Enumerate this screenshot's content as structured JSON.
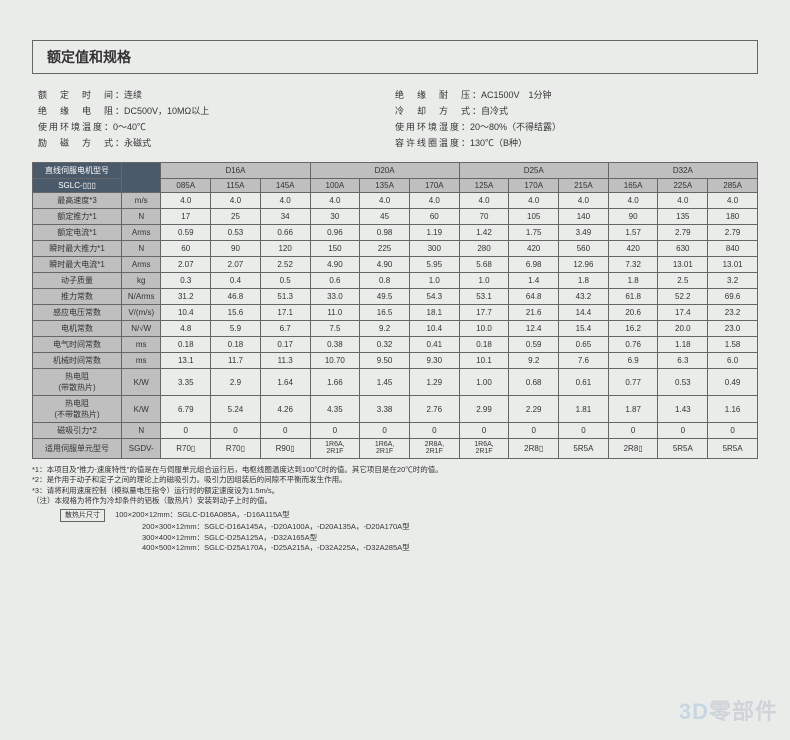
{
  "title": "额定值和规格",
  "spec_left": [
    {
      "label": "额　定　时　间",
      "value": "：连续"
    },
    {
      "label": "绝　缘　电　阻",
      "value": "：DC500V，10MΩ以上"
    },
    {
      "label": "使用环境温度",
      "value": "：0～40℃"
    },
    {
      "label": "励　磁　方　式",
      "value": "：永磁式"
    }
  ],
  "spec_right": [
    {
      "label": "绝　缘　耐　压",
      "value": "：AC1500V　1分钟"
    },
    {
      "label": "冷　却　方　式",
      "value": "：自冷式"
    },
    {
      "label": "使用环境湿度",
      "value": "：20～80%（不得结露）"
    },
    {
      "label": "容许线圈温度",
      "value": "：130℃（B种）"
    }
  ],
  "header": {
    "row1_label": "直线伺服电机型号",
    "row2_label": "SGLC-▯▯▯",
    "groups": [
      "D16A",
      "D20A",
      "D25A",
      "D32A"
    ],
    "subs": [
      "085A",
      "115A",
      "145A",
      "100A",
      "135A",
      "170A",
      "125A",
      "170A",
      "215A",
      "165A",
      "225A",
      "285A"
    ]
  },
  "rows": [
    {
      "label": "最高速度*3",
      "unit": "m/s",
      "vals": [
        "4.0",
        "4.0",
        "4.0",
        "4.0",
        "4.0",
        "4.0",
        "4.0",
        "4.0",
        "4.0",
        "4.0",
        "4.0",
        "4.0"
      ]
    },
    {
      "label": "额定推力*1",
      "unit": "N",
      "vals": [
        "17",
        "25",
        "34",
        "30",
        "45",
        "60",
        "70",
        "105",
        "140",
        "90",
        "135",
        "180"
      ]
    },
    {
      "label": "额定电流*1",
      "unit": "Arms",
      "vals": [
        "0.59",
        "0.53",
        "0.66",
        "0.96",
        "0.98",
        "1.19",
        "1.42",
        "1.75",
        "3.49",
        "1.57",
        "2.79",
        "2.79"
      ]
    },
    {
      "label": "瞬时最大推力*1",
      "unit": "N",
      "vals": [
        "60",
        "90",
        "120",
        "150",
        "225",
        "300",
        "280",
        "420",
        "560",
        "420",
        "630",
        "840"
      ]
    },
    {
      "label": "瞬时最大电流*1",
      "unit": "Arms",
      "vals": [
        "2.07",
        "2.07",
        "2.52",
        "4.90",
        "4.90",
        "5.95",
        "5.68",
        "6.98",
        "12.96",
        "7.32",
        "13.01",
        "13.01"
      ]
    },
    {
      "label": "动子质量",
      "unit": "kg",
      "vals": [
        "0.3",
        "0.4",
        "0.5",
        "0.6",
        "0.8",
        "1.0",
        "1.0",
        "1.4",
        "1.8",
        "1.8",
        "2.5",
        "3.2"
      ]
    },
    {
      "label": "推力常数",
      "unit": "N/Arms",
      "vals": [
        "31.2",
        "46.8",
        "51.3",
        "33.0",
        "49.5",
        "54.3",
        "53.1",
        "64.8",
        "43.2",
        "61.8",
        "52.2",
        "69.6"
      ]
    },
    {
      "label": "感应电压常数",
      "unit": "V/(m/s)",
      "vals": [
        "10.4",
        "15.6",
        "17.1",
        "11.0",
        "16.5",
        "18.1",
        "17.7",
        "21.6",
        "14.4",
        "20.6",
        "17.4",
        "23.2"
      ]
    },
    {
      "label": "电机常数",
      "unit": "N/√W",
      "vals": [
        "4.8",
        "5.9",
        "6.7",
        "7.5",
        "9.2",
        "10.4",
        "10.0",
        "12.4",
        "15.4",
        "16.2",
        "20.0",
        "23.0"
      ]
    },
    {
      "label": "电气时间常数",
      "unit": "ms",
      "vals": [
        "0.18",
        "0.18",
        "0.17",
        "0.38",
        "0.32",
        "0.41",
        "0.18",
        "0.59",
        "0.65",
        "0.76",
        "1.18",
        "1.58"
      ]
    },
    {
      "label": "机械时间常数",
      "unit": "ms",
      "vals": [
        "13.1",
        "11.7",
        "11.3",
        "10.70",
        "9.50",
        "9.30",
        "10.1",
        "9.2",
        "7.6",
        "6.9",
        "6.3",
        "6.0"
      ]
    },
    {
      "label": "热电阻\n(带散热片)",
      "unit": "K/W",
      "vals": [
        "3.35",
        "2.9",
        "1.64",
        "1.66",
        "1.45",
        "1.29",
        "1.00",
        "0.68",
        "0.61",
        "0.77",
        "0.53",
        "0.49"
      ]
    },
    {
      "label": "热电阻\n(不带散热片)",
      "unit": "K/W",
      "vals": [
        "6.79",
        "5.24",
        "4.26",
        "4.35",
        "3.38",
        "2.76",
        "2.99",
        "2.29",
        "1.81",
        "1.87",
        "1.43",
        "1.16"
      ]
    },
    {
      "label": "磁吸引力*2",
      "unit": "N",
      "vals": [
        "0",
        "0",
        "0",
        "0",
        "0",
        "0",
        "0",
        "0",
        "0",
        "0",
        "0",
        "0"
      ]
    }
  ],
  "footrow": {
    "label": "适用伺服单元型号",
    "unit": "SGDV-",
    "vals": [
      "R70▯",
      "R70▯",
      "R90▯",
      "1R6A,\n2R1F",
      "1R6A,\n2R1F",
      "2R8A,\n2R1F",
      "1R6A,\n2R1F",
      "2R8▯",
      "5R5A",
      "2R8▯",
      "5R5A",
      "5R5A"
    ]
  },
  "notes": [
    "*1：本项目及\"推力-速度特性\"的值是在与伺服单元组合运行后，电枢线圈温度达到100℃时的值。其它项目是在20℃时的值。",
    "*2：是作用于动子和定子之间的理论上的磁吸引力。吸引力因组装后的间隙不平衡而发生作用。",
    "*3：请将利用速度控制（模拟量电压指令）运行时的额定速度设为1.5m/s。",
    "（注）本规格为将作为冷却条件的铝板（散热片）安装到动子上时的值。"
  ],
  "heatsink_label": "散热片尺寸",
  "heatsink_lines": [
    "100×200×12mm：SGLC-D16A085A，-D16A115A型",
    "200×300×12mm：SGLC-D16A145A，-D20A100A，-D20A135A，-D20A170A型",
    "300×400×12mm：SGLC-D25A125A，-D32A165A型",
    "400×500×12mm：SGLC-D25A170A，-D25A215A，-D32A225A，-D32A285A型"
  ],
  "watermark": {
    "a": "3D",
    "b": "零部件"
  }
}
